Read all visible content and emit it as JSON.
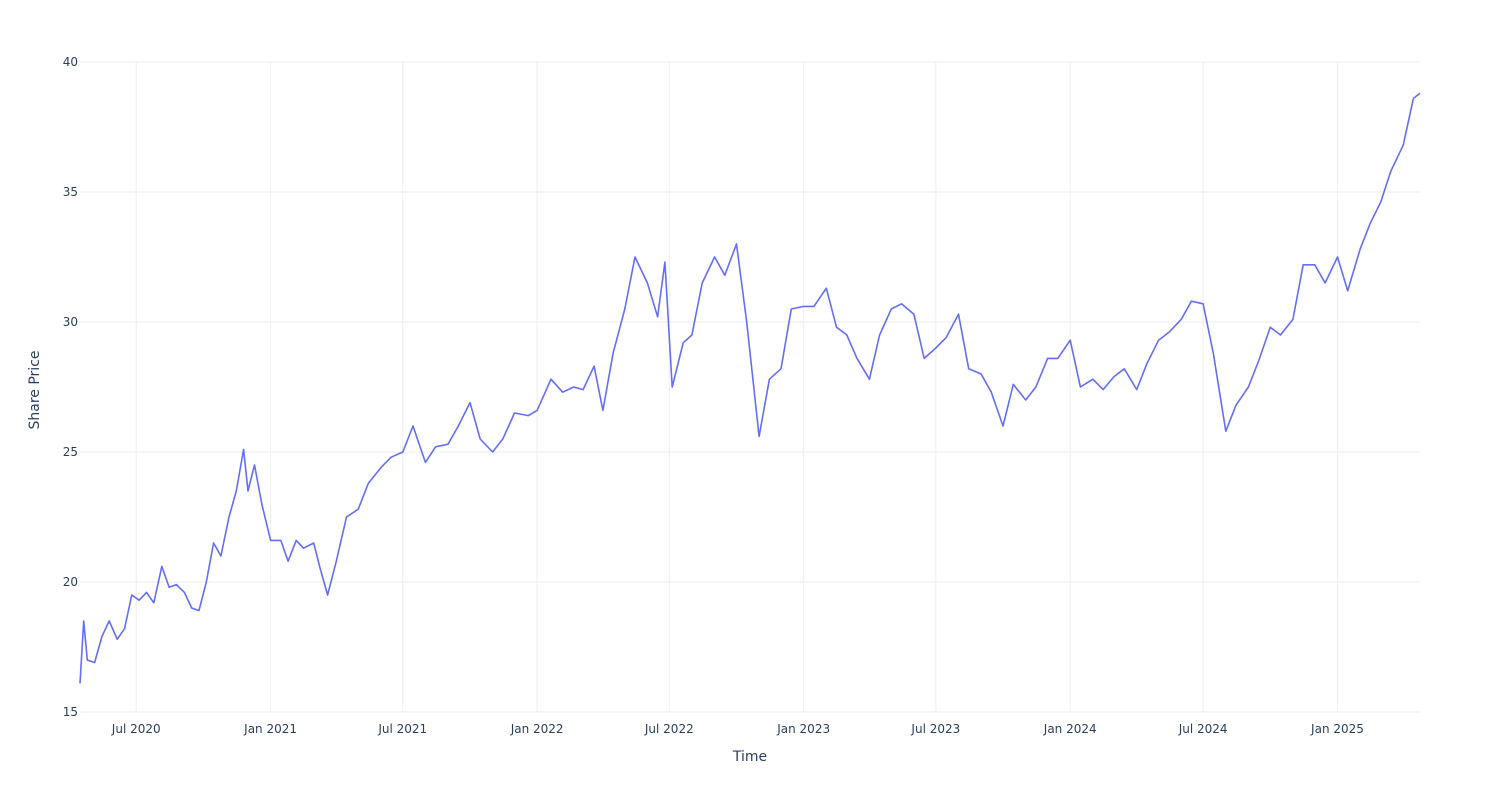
{
  "chart_data": {
    "type": "line",
    "title": "",
    "xlabel": "Time",
    "ylabel": "Share Price",
    "xlim": [
      "2020-04-15",
      "2025-04-24"
    ],
    "ylim": [
      15,
      40
    ],
    "grid": true,
    "x_ticks": [
      {
        "date": "2020-07-01",
        "label": "Jul 2020"
      },
      {
        "date": "2021-01-01",
        "label": "Jan 2021"
      },
      {
        "date": "2021-07-01",
        "label": "Jul 2021"
      },
      {
        "date": "2022-01-01",
        "label": "Jan 2022"
      },
      {
        "date": "2022-07-01",
        "label": "Jul 2022"
      },
      {
        "date": "2023-01-01",
        "label": "Jan 2023"
      },
      {
        "date": "2023-07-01",
        "label": "Jul 2023"
      },
      {
        "date": "2024-01-01",
        "label": "Jan 2024"
      },
      {
        "date": "2024-07-01",
        "label": "Jul 2024"
      },
      {
        "date": "2025-01-01",
        "label": "Jan 2025"
      }
    ],
    "y_ticks": [
      15,
      20,
      25,
      30,
      35,
      40
    ],
    "line_color": "#636efa",
    "series": [
      {
        "x": [
          "2020-04-15",
          "2020-04-20",
          "2020-04-25",
          "2020-05-05",
          "2020-05-15",
          "2020-05-25",
          "2020-06-05",
          "2020-06-15",
          "2020-06-25",
          "2020-07-05",
          "2020-07-15",
          "2020-07-25",
          "2020-08-05",
          "2020-08-15",
          "2020-08-25",
          "2020-09-05",
          "2020-09-15",
          "2020-09-25",
          "2020-10-05",
          "2020-10-15",
          "2020-10-25",
          "2020-11-05",
          "2020-11-15",
          "2020-11-25",
          "2020-12-01",
          "2020-12-10",
          "2020-12-20",
          "2021-01-01",
          "2021-01-15",
          "2021-01-25",
          "2021-02-05",
          "2021-02-15",
          "2021-03-01",
          "2021-03-10",
          "2021-03-20",
          "2021-04-01",
          "2021-04-15",
          "2021-05-01",
          "2021-05-15",
          "2021-06-01",
          "2021-06-15",
          "2021-07-01",
          "2021-07-15",
          "2021-08-01",
          "2021-08-15",
          "2021-09-01",
          "2021-09-15",
          "2021-10-01",
          "2021-10-15",
          "2021-11-01",
          "2021-11-15",
          "2021-12-01",
          "2021-12-20",
          "2022-01-01",
          "2022-01-20",
          "2022-02-05",
          "2022-02-20",
          "2022-03-05",
          "2022-03-20",
          "2022-04-01",
          "2022-04-15",
          "2022-05-01",
          "2022-05-15",
          "2022-06-01",
          "2022-06-15",
          "2022-06-25",
          "2022-07-05",
          "2022-07-20",
          "2022-08-01",
          "2022-08-15",
          "2022-09-01",
          "2022-09-15",
          "2022-10-01",
          "2022-10-15",
          "2022-11-01",
          "2022-11-15",
          "2022-12-01",
          "2022-12-15",
          "2023-01-01",
          "2023-01-15",
          "2023-02-01",
          "2023-02-15",
          "2023-03-01",
          "2023-03-15",
          "2023-04-01",
          "2023-04-15",
          "2023-05-01",
          "2023-05-15",
          "2023-06-01",
          "2023-06-15",
          "2023-07-01",
          "2023-07-15",
          "2023-08-01",
          "2023-08-15",
          "2023-09-01",
          "2023-09-15",
          "2023-10-01",
          "2023-10-15",
          "2023-11-01",
          "2023-11-15",
          "2023-12-01",
          "2023-12-15",
          "2024-01-01",
          "2024-01-15",
          "2024-02-01",
          "2024-02-15",
          "2024-03-01",
          "2024-03-15",
          "2024-04-01",
          "2024-04-15",
          "2024-05-01",
          "2024-05-15",
          "2024-06-01",
          "2024-06-15",
          "2024-07-01",
          "2024-07-15",
          "2024-08-01",
          "2024-08-15",
          "2024-09-01",
          "2024-09-15",
          "2024-10-01",
          "2024-10-15",
          "2024-11-01",
          "2024-11-15",
          "2024-12-01",
          "2024-12-15",
          "2025-01-01",
          "2025-01-15",
          "2025-02-01",
          "2025-02-15",
          "2025-03-01",
          "2025-03-15",
          "2025-04-01",
          "2025-04-15",
          "2025-04-24"
        ],
        "y": [
          16.1,
          18.5,
          17.0,
          16.9,
          17.9,
          18.5,
          17.8,
          18.2,
          19.5,
          19.3,
          19.6,
          19.2,
          20.6,
          19.8,
          19.9,
          19.6,
          19.0,
          18.9,
          20.0,
          21.5,
          21.0,
          22.5,
          23.5,
          25.1,
          23.5,
          24.5,
          23.0,
          21.6,
          21.6,
          20.8,
          21.6,
          21.3,
          21.5,
          20.5,
          19.5,
          20.8,
          22.5,
          22.8,
          23.8,
          24.4,
          24.8,
          25.0,
          26.0,
          24.6,
          25.2,
          25.3,
          26.0,
          26.9,
          25.5,
          25.0,
          25.5,
          26.5,
          26.4,
          26.6,
          27.8,
          27.3,
          27.5,
          27.4,
          28.3,
          26.6,
          28.8,
          30.5,
          32.5,
          31.5,
          30.2,
          32.3,
          27.5,
          29.2,
          29.5,
          31.5,
          32.5,
          31.8,
          33.0,
          30.0,
          25.6,
          27.8,
          28.2,
          30.5,
          30.6,
          30.6,
          31.3,
          29.8,
          29.5,
          28.6,
          27.8,
          29.5,
          30.5,
          30.7,
          30.3,
          28.6,
          29.0,
          29.4,
          30.3,
          28.2,
          28.0,
          27.3,
          26.0,
          27.6,
          27.0,
          27.5,
          28.6,
          28.6,
          29.3,
          27.5,
          27.8,
          27.4,
          27.9,
          28.2,
          27.4,
          28.4,
          29.3,
          29.6,
          30.1,
          30.8,
          30.7,
          28.8,
          25.8,
          26.8,
          27.5,
          28.5,
          29.8,
          29.5,
          30.1,
          32.2,
          32.2,
          31.5,
          32.5,
          31.2,
          32.8,
          33.8,
          34.6,
          35.8,
          36.8,
          38.6,
          38.8
        ]
      }
    ]
  }
}
